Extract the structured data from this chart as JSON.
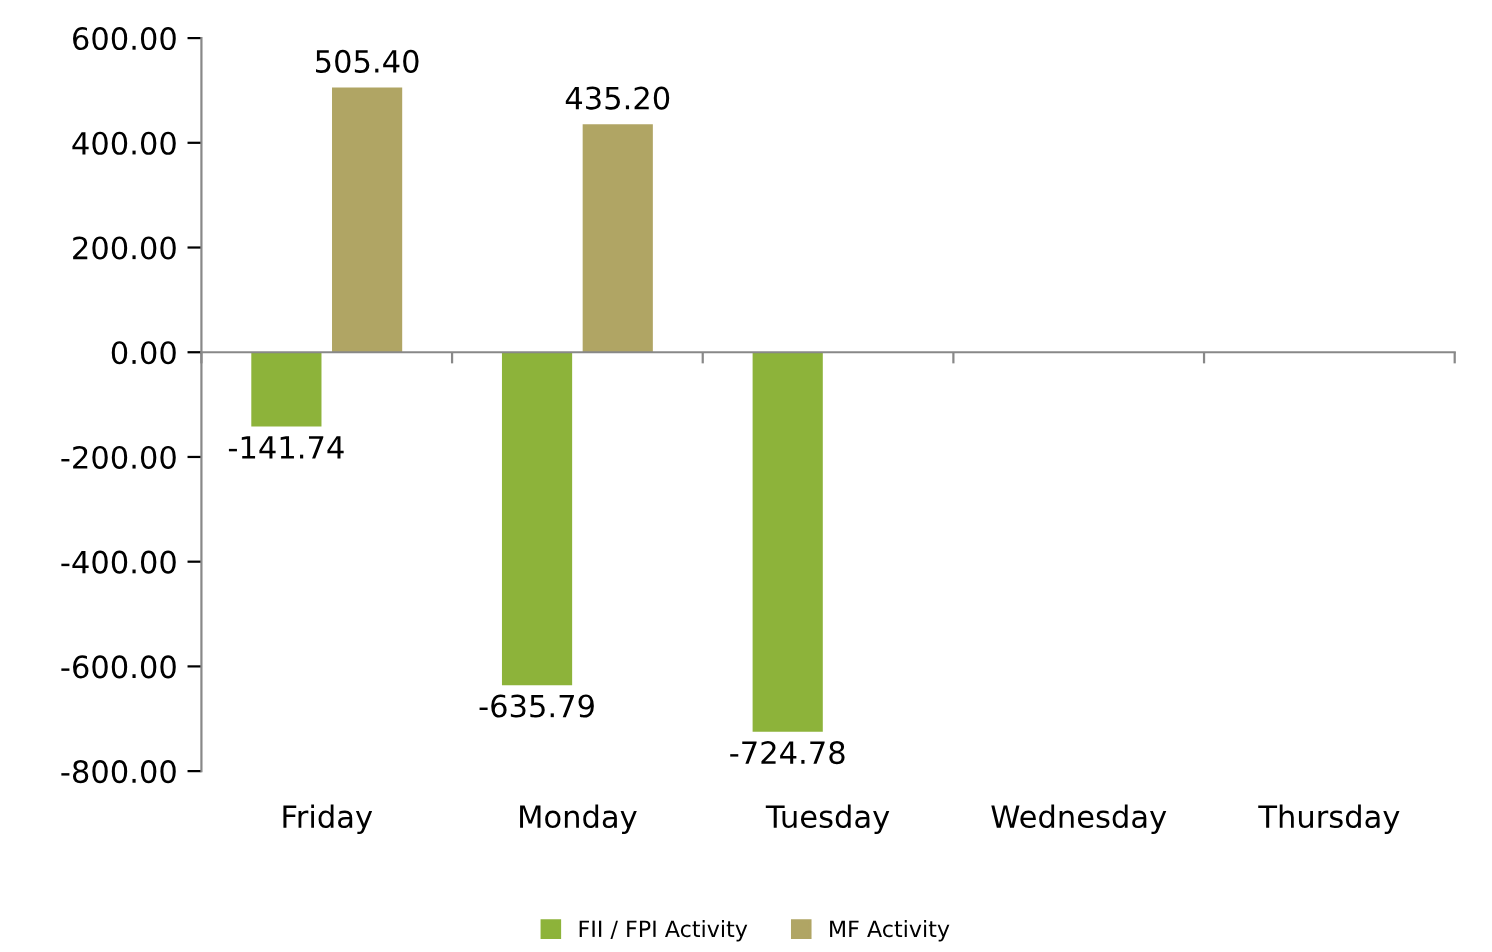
{
  "chart_data": {
    "type": "bar",
    "categories": [
      "Friday",
      "Monday",
      "Tuesday",
      "Wednesday",
      "Thursday"
    ],
    "series": [
      {
        "name": "FII / FPI Activity",
        "color": "#8db33a",
        "values": [
          -141.74,
          -635.79,
          -724.78,
          null,
          null
        ],
        "value_labels": [
          "-141.74",
          "-635.79",
          "-724.78",
          null,
          null
        ]
      },
      {
        "name": "MF Activity",
        "color": "#b0a564",
        "values": [
          505.4,
          435.2,
          null,
          null,
          null
        ],
        "value_labels": [
          "505.40",
          "435.20",
          null,
          null,
          null
        ]
      }
    ],
    "ylim": [
      -800,
      600
    ],
    "yticks": [
      {
        "value": -800,
        "label": "-800.00"
      },
      {
        "value": -600,
        "label": "-600.00"
      },
      {
        "value": -400,
        "label": "-400.00"
      },
      {
        "value": -200,
        "label": "-200.00"
      },
      {
        "value": 0,
        "label": "0.00"
      },
      {
        "value": 200,
        "label": "200.00"
      },
      {
        "value": 400,
        "label": "400.00"
      },
      {
        "value": 600,
        "label": "600.00"
      }
    ],
    "legend": "bottom"
  }
}
